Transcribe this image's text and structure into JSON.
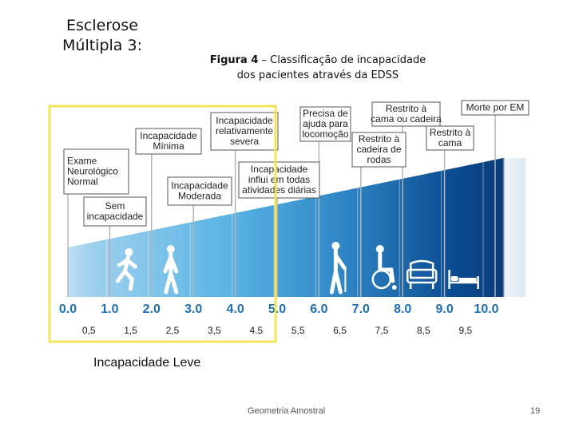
{
  "slide": {
    "title_line1": "Esclerose",
    "title_line2": "Múltipla 3:",
    "figure_label": "Figura 4",
    "caption_rest_line1": " – Classificação de incapacidade",
    "caption_line2": "dos pacientes através da EDSS",
    "legend_text": "Incapacidade Leve",
    "footer_text": "Geometria Amostral",
    "page_number": "19"
  },
  "colors": {
    "highlight": "#f2e45a",
    "scale_text": "#1f6fb4",
    "ramp_light": "#5ab4e4",
    "ramp_dark": "#0a3d7a"
  },
  "edss": {
    "integer_marks": [
      "0.0",
      "1.0",
      "2.0",
      "3.0",
      "4.0",
      "5.0",
      "6.0",
      "7.0",
      "8.0",
      "9.0",
      "10.0"
    ],
    "half_marks": [
      "0,5",
      "1,5",
      "2,5",
      "3,5",
      "4.5",
      "5,5",
      "6,5",
      "7,5",
      "8,5",
      "9,5"
    ],
    "highlight_range": [
      0,
      4.5
    ],
    "stages": [
      {
        "label_lines": [
          "Exame",
          "Neurológico",
          "Normal"
        ],
        "score": 0,
        "icon": "none"
      },
      {
        "label_lines": [
          "Sem",
          "incapacidade"
        ],
        "score": 1,
        "icon": "running-person-icon"
      },
      {
        "label_lines": [
          "Incapacidade",
          "Mínima"
        ],
        "score": 2,
        "icon": "walking-person-icon"
      },
      {
        "label_lines": [
          "Incapacidade",
          "Moderada"
        ],
        "score": 3,
        "icon": "none"
      },
      {
        "label_lines": [
          "Incapacidade",
          "relativamente",
          "severa"
        ],
        "score": 4,
        "icon": "none"
      },
      {
        "label_lines": [
          "Incapacidade",
          "influi em todas",
          "atividades diárias"
        ],
        "score": 5,
        "icon": "none"
      },
      {
        "label_lines": [
          "Precisa de",
          "ajuda para",
          "locomoção"
        ],
        "score": 6,
        "icon": "cane-person-icon"
      },
      {
        "label_lines": [
          "Restrito à",
          "cadeira de",
          "rodas"
        ],
        "score": 7,
        "icon": "wheelchair-icon"
      },
      {
        "label_lines": [
          "Restrito à",
          "cama ou cadeira"
        ],
        "score": 8,
        "icon": "armchair-icon"
      },
      {
        "label_lines": [
          "Restrito à",
          "cama"
        ],
        "score": 9,
        "icon": "bed-icon"
      },
      {
        "label_lines": [
          "Morte por EM"
        ],
        "score": 10,
        "icon": "none"
      }
    ]
  }
}
